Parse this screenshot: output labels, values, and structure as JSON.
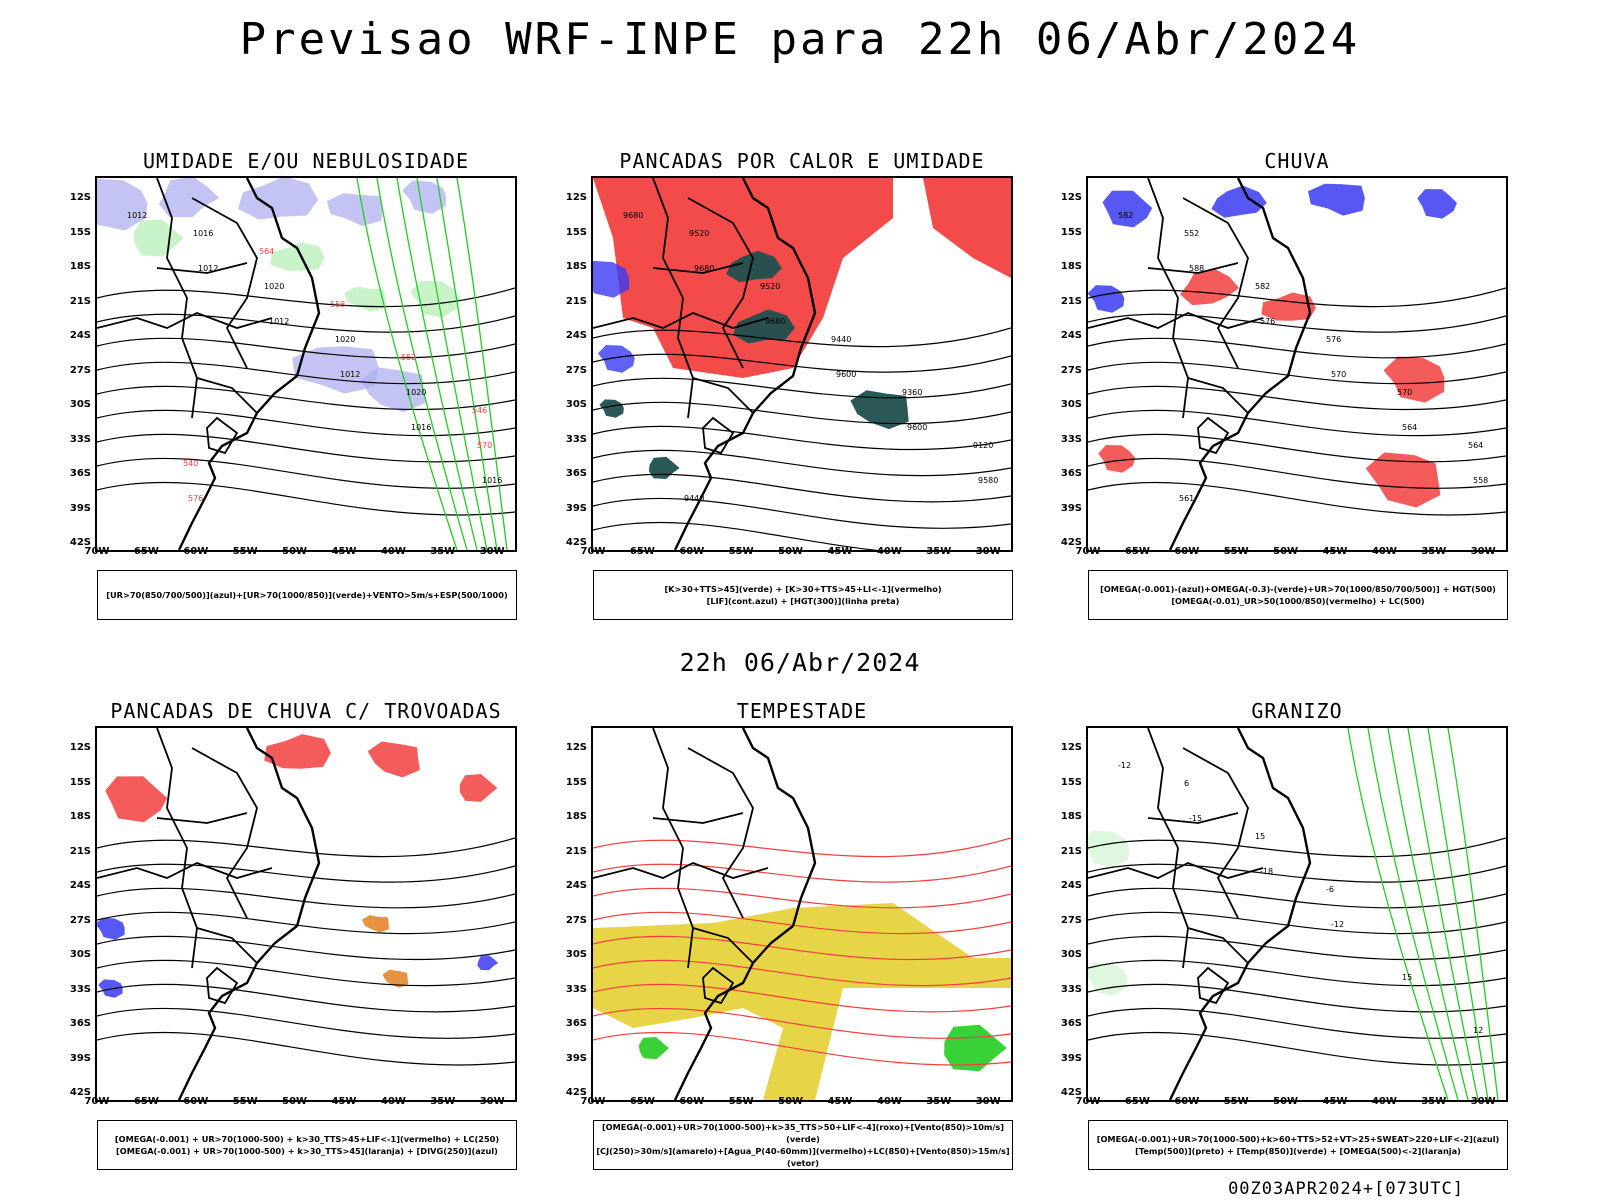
{
  "header": {
    "title": "Previsao WRF-INPE  para 22h 06/Abr/2024",
    "date_label": "22h 06/Abr/2024",
    "run_code": "00Z03APR2024+[073UTC]"
  },
  "axes": {
    "lat_ticks": [
      "12S",
      "15S",
      "18S",
      "21S",
      "24S",
      "27S",
      "30S",
      "33S",
      "36S",
      "39S",
      "42S"
    ],
    "lon_ticks": [
      "70W",
      "65W",
      "60W",
      "55W",
      "50W",
      "45W",
      "40W",
      "35W",
      "30W"
    ]
  },
  "colors": {
    "blue": "#3a3af2",
    "lavender": "#b0b0f0",
    "green": "#22cc22",
    "red": "#f24040",
    "darkteal": "#1f4f4f",
    "yellow": "#e6d033",
    "orange": "#e08020"
  },
  "panels": [
    {
      "title": "UMIDADE E/OU NEBULOSIDADE",
      "legend": [
        "[UR>70(850/700/500)](azul)+[UR>70(1000/850)](verde)+VENTO>5m/s+ESP(500/1000)"
      ],
      "contour_labels": [
        "1012",
        "1012",
        "1012",
        "1012",
        "1016",
        "1016",
        "1016",
        "1020",
        "1020",
        "1020",
        "570",
        "576",
        "564",
        "558",
        "552",
        "546",
        "540"
      ]
    },
    {
      "title": "PANCADAS POR CALOR E UMIDADE",
      "legend": [
        "[K>30+TTS>45](verde) + [K>30+TTS>45+LI<-1](vermelho)",
        "[LIF](cont.azul) + [HGT(300)](linha preta)"
      ],
      "contour_labels": [
        "9680",
        "9680",
        "9680",
        "9600",
        "9600",
        "9580",
        "9520",
        "9520",
        "9440",
        "9360",
        "9120",
        "9440"
      ]
    },
    {
      "title": "CHUVA",
      "legend": [
        "[OMEGA(-0.001)-(azul)+OMEGA(-0.3)-(verde)+UR>70(1000/850/700/500)] + HGT(500)",
        "[OMEGA(-0.01)_UR>50(1000/850)(vermelho) + LC(500)"
      ],
      "contour_labels": [
        "582",
        "588",
        "576",
        "570",
        "564",
        "558",
        "552",
        "582",
        "576",
        "570",
        "564",
        "561"
      ]
    },
    {
      "title": "PANCADAS DE CHUVA C/ TROVOADAS",
      "legend": [
        "[OMEGA(-0.001) + UR>70(1000-500) + k>30_TTS>45+LIF<-1](vermelho) + LC(250)",
        "[OMEGA(-0.001) + UR>70(1000-500) + k>30_TTS>45](laranja) + [DIVG(250)](azul)"
      ],
      "contour_labels": []
    },
    {
      "title": "TEMPESTADE",
      "legend": [
        "[OMEGA(-0.001)+UR>70(1000-500)+k>35_TTS>50+LIF<-4](roxo)+[Vento(850)>10m/s](verde)",
        "[CJ(250)>30m/s](amarelo)+[Agua_P(40-60mm)](vermelho)+LC(850)+[Vento(850)>15m/s](vetor)"
      ],
      "contour_labels": []
    },
    {
      "title": "GRANIZO",
      "legend": [
        "[OMEGA(-0.001)+UR>70(1000-500)+k>60+TTS>52+VT>25+SWEAT>220+LIF<-2](azul)",
        "[Temp(500)](preto) + [Temp(850)](verde) + [OMEGA(500)<-2](laranja)"
      ],
      "contour_labels": [
        "-12",
        "-15",
        "-18",
        "-12",
        "15",
        "12",
        "6",
        "15",
        "-6"
      ]
    }
  ]
}
